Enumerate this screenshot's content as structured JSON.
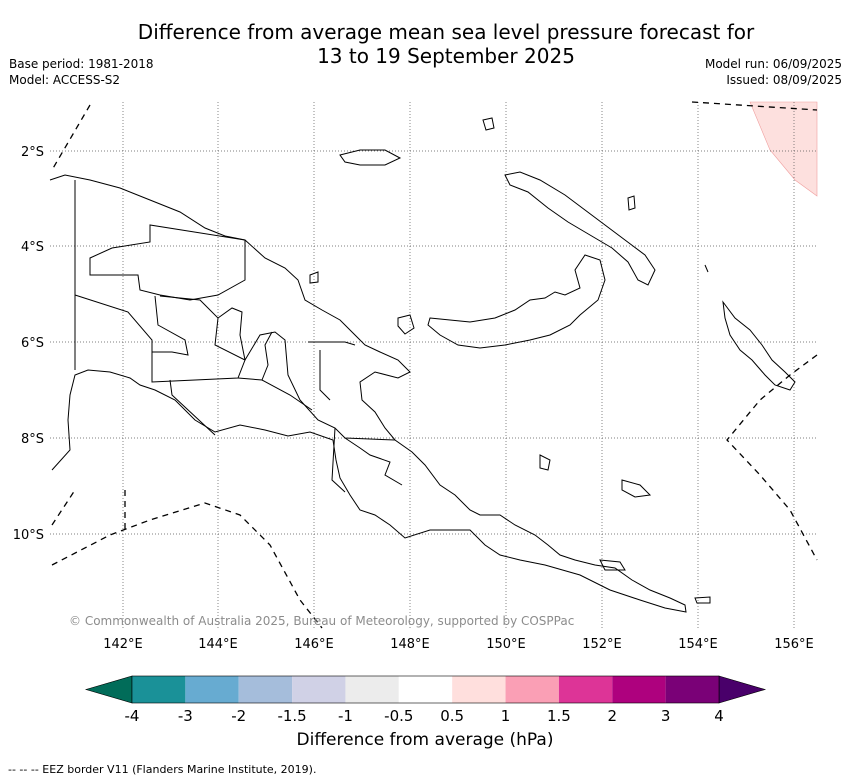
{
  "title_line1": "Difference from average mean sea level pressure forecast for",
  "title_line2": "13 to 19 September 2025",
  "base_period": "Base period: 1981-2018",
  "model": "Model: ACCESS-S2",
  "model_run": "Model run: 06/09/2025",
  "issued": "Issued: 08/09/2025",
  "copyright": "© Commonwealth of Australia 2025, Bureau of Meteorology, supported by COSPPac",
  "colorbar_label": "Difference from average (hPa)",
  "footnote": "--  --  -- EEZ border V11 (Flanders Marine Institute, 2019).",
  "lat_labels": [
    "2°S",
    "4°S",
    "6°S",
    "8°S",
    "10°S"
  ],
  "lon_labels": [
    "142°E",
    "144°E",
    "146°E",
    "148°E",
    "150°E",
    "152°E",
    "154°E",
    "156°E"
  ],
  "colorbar": {
    "tick_labels": [
      "-4",
      "-3",
      "-2",
      "-1.5",
      "-1",
      "-0.5",
      "0.5",
      "1",
      "1.5",
      "2",
      "3",
      "4"
    ],
    "colors": [
      "#1a9198",
      "#67abd1",
      "#a5bddb",
      "#d0d1e6",
      "#ececec",
      "#ffffff",
      "#ffdfdd",
      "#fa9fb5",
      "#dd3497",
      "#ae017e",
      "#7a0177"
    ],
    "under_color": "#016c59",
    "over_color": "#49006a"
  },
  "anomaly_patch_color": "#fde0de"
}
